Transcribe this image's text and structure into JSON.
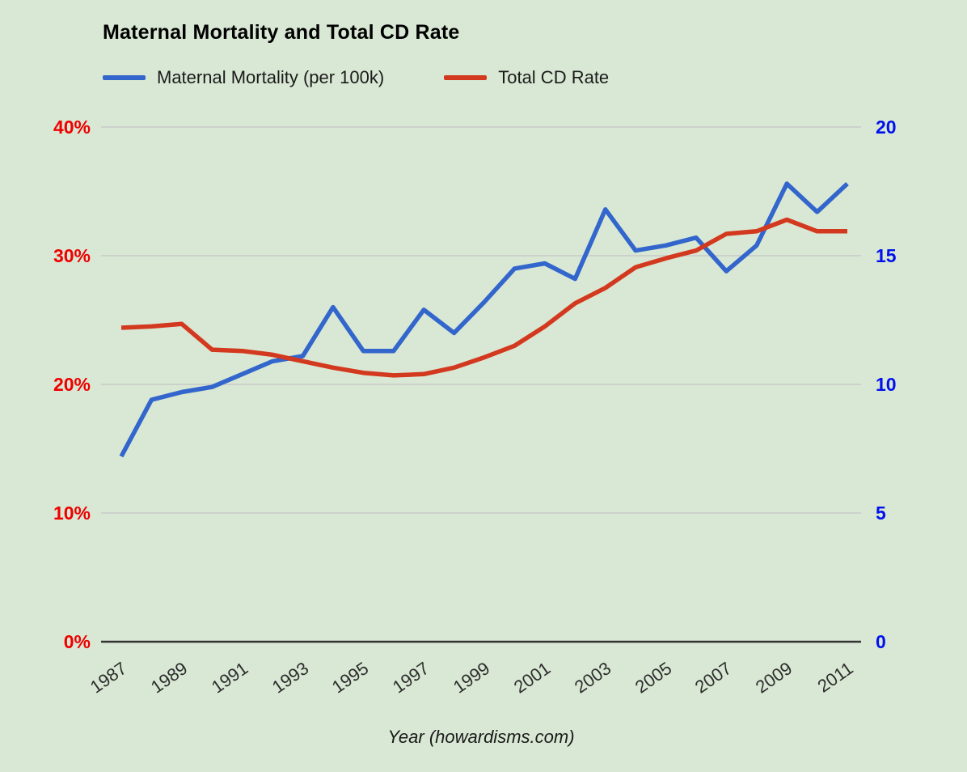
{
  "page": {
    "background": "#d9e8d4"
  },
  "header": {
    "title": "Maternal Mortality and Total CD Rate"
  },
  "legend": [
    {
      "label": "Maternal Mortality (per 100k)",
      "color": "#3366cc"
    },
    {
      "label": "Total CD Rate",
      "color": "#d3391e"
    }
  ],
  "chart_data": {
    "type": "line",
    "title": "Maternal Mortality and Total CD Rate",
    "xlabel": "Year (howardisms.com)",
    "grid": true,
    "legend_position": "top",
    "x": [
      1987,
      1988,
      1989,
      1990,
      1991,
      1992,
      1993,
      1994,
      1995,
      1996,
      1997,
      1998,
      1999,
      2000,
      2001,
      2002,
      2003,
      2004,
      2005,
      2006,
      2007,
      2008,
      2009,
      2010,
      2011
    ],
    "x_tick_labels": [
      "1987",
      "1989",
      "1991",
      "1993",
      "1995",
      "1997",
      "1999",
      "2001",
      "2003",
      "2005",
      "2007",
      "2009",
      "2011"
    ],
    "series": [
      {
        "name": "Maternal Mortality (per 100k)",
        "axis": "right",
        "color": "#3366cc",
        "values": [
          7.2,
          9.4,
          9.7,
          9.9,
          10.4,
          10.9,
          11.1,
          13,
          11.3,
          11.3,
          12.9,
          12,
          13.2,
          14.5,
          14.7,
          14.1,
          16.8,
          15.2,
          15.4,
          15.7,
          14.4,
          15.4,
          17.8,
          16.7,
          17.8
        ]
      },
      {
        "name": "Total CD Rate",
        "axis": "left",
        "color": "#d3391e",
        "values": [
          24.4,
          24.5,
          24.7,
          22.7,
          22.6,
          22.3,
          21.8,
          21.3,
          20.9,
          20.7,
          20.8,
          21.3,
          22.1,
          23,
          24.5,
          26.3,
          27.5,
          29.1,
          29.8,
          30.4,
          31.7,
          31.9,
          32.8,
          31.9,
          31.9
        ]
      }
    ],
    "left_axis": {
      "ticks": [
        "0%",
        "10%",
        "20%",
        "30%",
        "40%"
      ],
      "values": [
        0,
        10,
        20,
        30,
        40
      ],
      "range": [
        0,
        40
      ],
      "text_color": "#ee0000"
    },
    "right_axis": {
      "ticks": [
        "0",
        "5",
        "10",
        "15",
        "20"
      ],
      "values": [
        0,
        5,
        10,
        15,
        20
      ],
      "range": [
        0,
        20
      ],
      "text_color": "#0011ee"
    }
  }
}
